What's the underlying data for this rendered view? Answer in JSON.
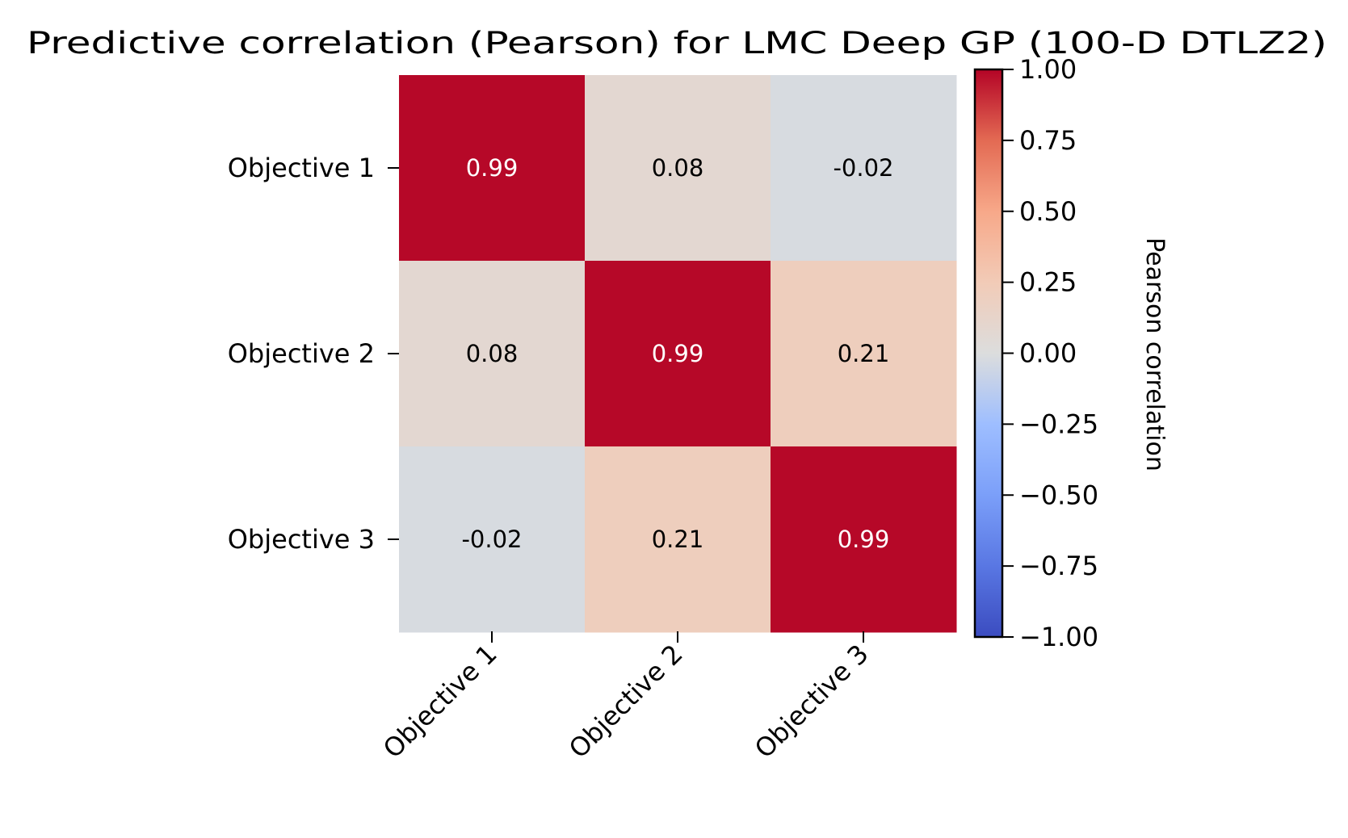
{
  "chart_data": {
    "type": "heatmap",
    "title": "Predictive correlation (Pearson) for LMC Deep GP (100-D DTLZ2)",
    "row_labels": [
      "Objective 1",
      "Objective 2",
      "Objective 3"
    ],
    "col_labels": [
      "Objective 1",
      "Objective 2",
      "Objective 3"
    ],
    "values": [
      [
        0.99,
        0.08,
        -0.02
      ],
      [
        0.08,
        0.99,
        0.21
      ],
      [
        -0.02,
        0.21,
        0.99
      ]
    ],
    "annotations": [
      [
        "0.99",
        "0.08",
        "-0.02"
      ],
      [
        "0.08",
        "0.99",
        "0.21"
      ],
      [
        "-0.02",
        "0.21",
        "0.99"
      ]
    ],
    "colormap": "coolwarm",
    "vmin": -1,
    "vmax": 1,
    "colorbar": {
      "label": "Pearson correlation",
      "ticks": [
        1,
        0.75,
        0.5,
        0.25,
        0,
        -0.25,
        -0.5,
        -0.75,
        -1
      ],
      "tick_labels": [
        "1.00",
        "0.75",
        "0.50",
        "0.25",
        "0.00",
        "−0.25",
        "−0.50",
        "−0.75",
        "−1.00"
      ]
    },
    "colors": {
      "coolwarm_stops": [
        "#3b4cc0",
        "#5977e3",
        "#7b9ff9",
        "#9ebeff",
        "#dcdddd",
        "#f2cbb7",
        "#f7a889",
        "#e36a53",
        "#b40426"
      ]
    }
  }
}
